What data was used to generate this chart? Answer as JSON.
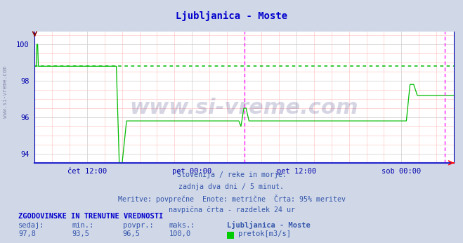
{
  "title": "Ljubljanica - Moste",
  "title_color": "#0000cc",
  "background_color": "#d0d8e8",
  "plot_bg_color": "#ffffff",
  "ylim": [
    93.5,
    100.7
  ],
  "yticks": [
    94,
    96,
    98,
    100
  ],
  "grid_color_major": "#cccccc",
  "grid_color_minor": "#ffbbbb",
  "dotted_line_y": 98.8,
  "dotted_line_color": "#00bb00",
  "axis_color": "#0000aa",
  "line_color": "#00bb00",
  "watermark": "www.si-vreme.com",
  "watermark_color": "#1a1a6e",
  "watermark_alpha": 0.18,
  "footer_lines": [
    "Slovenija / reke in morje.",
    "zadnja dva dni / 5 minut.",
    "Meritve: povprečne  Enote: metrične  Črta: 95% meritev",
    "navpična črta - razdelek 24 ur"
  ],
  "footer_color": "#3355aa",
  "stats_header": "ZGODOVINSKE IN TRENUTNE VREDNOSTI",
  "stats_header_color": "#0000cc",
  "stats_labels": [
    "sedaj:",
    "min.:",
    "povpr.:",
    "maks.:"
  ],
  "stats_values": [
    "97,8",
    "93,5",
    "96,5",
    "100,0"
  ],
  "stats_color": "#3355aa",
  "legend_label": "pretok[m3/s]",
  "legend_color": "#00cc00",
  "station_name": "Ljubljanica - Moste",
  "xtick_labels": [
    "čet 12:00",
    "pet 00:00",
    "pet 12:00",
    "sob 00:00"
  ],
  "xtick_positions": [
    0.125,
    0.375,
    0.625,
    0.875
  ],
  "vline_positions": [
    0.5,
    0.978
  ],
  "vline_color": "#ff00ff",
  "n_points": 576
}
